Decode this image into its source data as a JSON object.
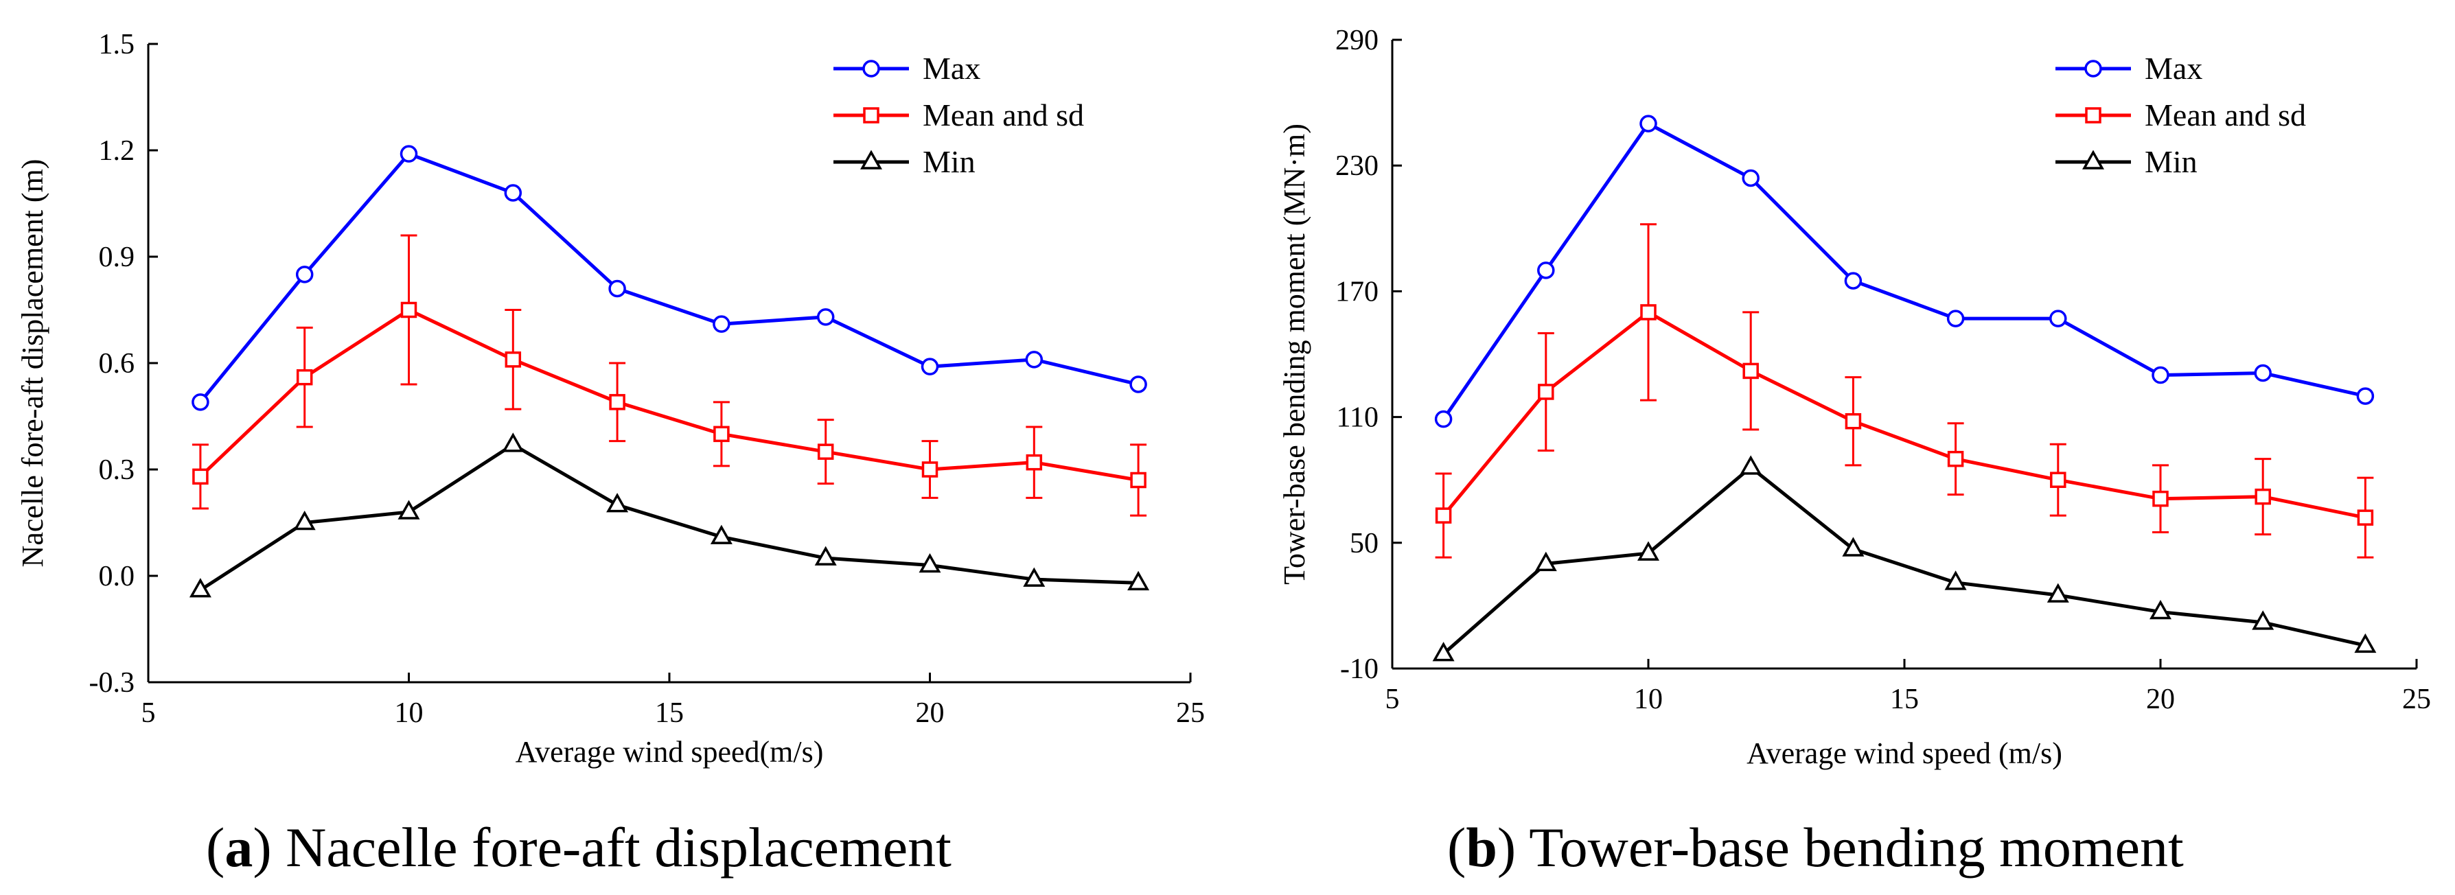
{
  "chart_data": [
    {
      "type": "line",
      "caption_prefix": "(",
      "caption_letter": "a",
      "caption_text": ") Nacelle fore-aft displacement",
      "xlabel": "Average wind speed(m/s)",
      "ylabel": "Nacelle fore-aft displacement (m)",
      "xlim": [
        5,
        25
      ],
      "ylim": [
        -0.3,
        1.5
      ],
      "xticks": [
        5,
        10,
        15,
        20,
        25
      ],
      "yticks": [
        -0.3,
        0.0,
        0.3,
        0.6,
        0.9,
        1.2,
        1.5
      ],
      "ytick_labels": [
        "-0.3",
        "0.0",
        "0.3",
        "0.6",
        "0.9",
        "1.2",
        "1.5"
      ],
      "x": [
        6,
        8,
        10,
        12,
        14,
        16,
        18,
        20,
        22,
        24
      ],
      "legend_position": "top-right",
      "series": [
        {
          "name": "Max",
          "color": "#0000ff",
          "marker": "circle",
          "values": [
            0.49,
            0.85,
            1.19,
            1.08,
            0.81,
            0.71,
            0.73,
            0.59,
            0.61,
            0.54
          ]
        },
        {
          "name": "Mean and sd",
          "color": "#ff0000",
          "marker": "square",
          "values": [
            0.28,
            0.56,
            0.75,
            0.61,
            0.49,
            0.4,
            0.35,
            0.3,
            0.32,
            0.27
          ],
          "sd": [
            0.09,
            0.14,
            0.21,
            0.14,
            0.11,
            0.09,
            0.09,
            0.08,
            0.1,
            0.1
          ]
        },
        {
          "name": "Min",
          "color": "#000000",
          "marker": "triangle",
          "values": [
            -0.04,
            0.15,
            0.18,
            0.37,
            0.2,
            0.11,
            0.05,
            0.03,
            -0.01,
            -0.02
          ]
        }
      ]
    },
    {
      "type": "line",
      "caption_prefix": "(",
      "caption_letter": "b",
      "caption_text": ") Tower-base bending moment",
      "xlabel": "Average wind speed (m/s)",
      "ylabel": "Tower-base bending moment (MN·m)",
      "xlim": [
        5,
        25
      ],
      "ylim": [
        -10,
        290
      ],
      "xticks": [
        5,
        10,
        15,
        20,
        25
      ],
      "yticks": [
        -10,
        50,
        110,
        170,
        230,
        290
      ],
      "ytick_labels": [
        "-10",
        "50",
        "110",
        "170",
        "230",
        "290"
      ],
      "x": [
        6,
        8,
        10,
        12,
        14,
        16,
        18,
        20,
        22,
        24
      ],
      "legend_position": "top-right",
      "series": [
        {
          "name": "Max",
          "color": "#0000ff",
          "marker": "circle",
          "values": [
            109,
            180,
            250,
            224,
            175,
            157,
            157,
            130,
            131,
            120
          ]
        },
        {
          "name": "Mean and sd",
          "color": "#ff0000",
          "marker": "square",
          "values": [
            63,
            122,
            160,
            132,
            108,
            90,
            80,
            71,
            72,
            62
          ],
          "sd": [
            20,
            28,
            42,
            28,
            21,
            17,
            17,
            16,
            18,
            19
          ]
        },
        {
          "name": "Min",
          "color": "#000000",
          "marker": "triangle",
          "values": [
            -3,
            40,
            45,
            86,
            47,
            31,
            25,
            17,
            12,
            1
          ]
        }
      ]
    }
  ]
}
